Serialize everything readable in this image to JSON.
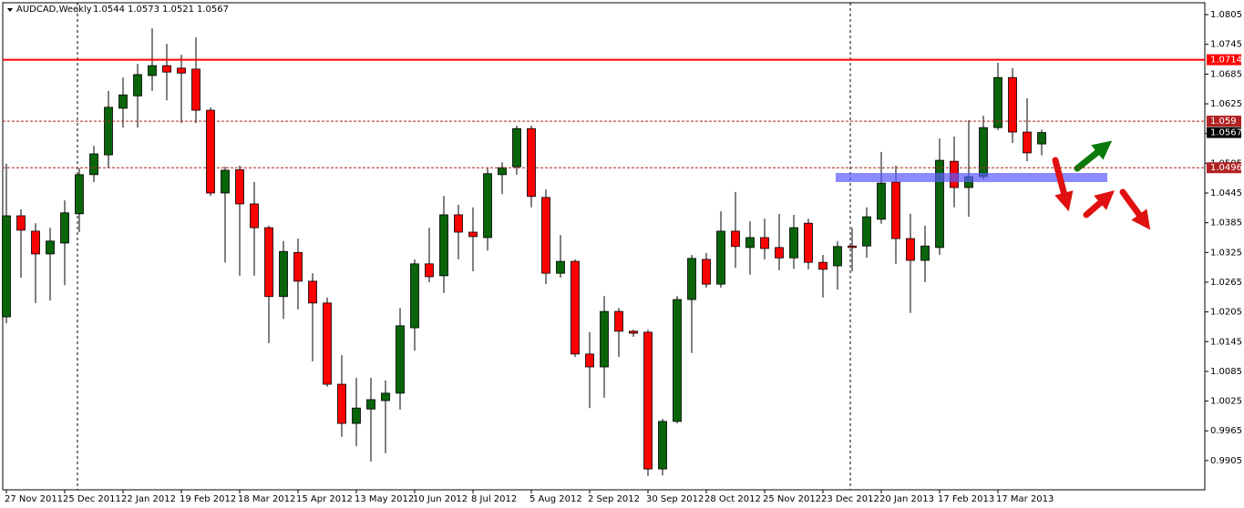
{
  "chart_data": {
    "type": "candlestick",
    "title": "AUDCAD,Weekly",
    "categories": [
      "27 Nov 2011",
      null,
      null,
      null,
      "25 Dec 2011",
      null,
      null,
      null,
      "22 Jan 2012",
      null,
      null,
      null,
      "19 Feb 2012",
      null,
      null,
      null,
      "18 Mar 2012",
      null,
      null,
      null,
      "15 Apr 2012",
      null,
      null,
      null,
      "13 May 2012",
      null,
      null,
      null,
      "10 Jun 2012",
      null,
      null,
      null,
      "8 Jul 2012",
      null,
      null,
      null,
      "5 Aug 2012",
      null,
      null,
      null,
      "2 Sep 2012",
      null,
      null,
      null,
      "30 Sep 2012",
      null,
      null,
      null,
      "28 Oct 2012",
      null,
      null,
      null,
      "25 Nov 2012",
      null,
      null,
      null,
      "23 Dec 2012",
      null,
      null,
      null,
      "20 Jan 2013",
      null,
      null,
      null,
      "17 Feb 2013",
      null,
      null,
      null,
      "17 Mar 2013",
      null,
      null,
      null
    ],
    "open": [
      1.0195,
      1.0399,
      1.0368,
      1.0322,
      1.0344,
      1.0403,
      1.0482,
      1.0522,
      1.0616,
      1.0641,
      1.0682,
      1.0702,
      1.0697,
      1.0695,
      1.0612,
      1.0445,
      1.0492,
      1.0423,
      1.0375,
      1.0236,
      1.0325,
      1.0267,
      1.0223,
      1.0059,
      0.998,
      1.0009,
      1.0026,
      1.0041,
      1.0173,
      1.0302,
      1.0278,
      1.0401,
      1.0366,
      1.0355,
      1.0482,
      1.0498,
      1.0575,
      1.0436,
      1.0283,
      1.0307,
      1.012,
      1.0094,
      1.0206,
      1.0166,
      1.0164,
      0.9888,
      0.9984,
      1.023,
      1.0311,
      1.0261,
      1.0368,
      1.0335,
      1.0355,
      1.0335,
      1.0314,
      1.0384,
      1.0305,
      1.0298,
      1.0338,
      1.0338,
      1.0392,
      1.0467,
      1.0353,
      1.0309,
      1.0335,
      1.0509,
      1.0456,
      1.0478,
      1.0577,
      1.0678,
      1.0568,
      1.0544
    ],
    "high": [
      1.0504,
      1.0412,
      1.0384,
      1.0375,
      1.043,
      1.0495,
      1.054,
      1.0651,
      1.0678,
      1.0706,
      1.0777,
      1.0746,
      1.0724,
      1.0759,
      1.0618,
      1.0498,
      1.05,
      1.0467,
      1.0379,
      1.0348,
      1.0353,
      1.0283,
      1.0234,
      1.0118,
      1.0072,
      1.0072,
      1.0067,
      1.0213,
      1.0311,
      1.0375,
      1.0439,
      1.0421,
      1.0416,
      1.0495,
      1.0507,
      1.0581,
      1.0581,
      1.0452,
      1.036,
      1.0311,
      1.0164,
      1.0237,
      1.0213,
      1.0169,
      1.0169,
      0.9989,
      1.0237,
      1.032,
      1.0324,
      1.0408,
      1.0447,
      1.0388,
      1.0393,
      1.0403,
      1.0401,
      1.0393,
      1.032,
      1.0348,
      1.0375,
      1.0416,
      1.0528,
      1.05,
      1.0403,
      1.0379,
      1.0555,
      1.0559,
      1.0592,
      1.0601,
      1.0708,
      1.0697,
      1.0636,
      1.0573
    ],
    "low": [
      1.0182,
      1.0274,
      1.0223,
      1.0228,
      1.0259,
      1.0366,
      1.0467,
      1.0495,
      1.0577,
      1.0577,
      1.0651,
      1.0632,
      1.0586,
      1.0586,
      1.0439,
      1.0305,
      1.0278,
      1.0278,
      1.0142,
      1.0191,
      1.021,
      1.0105,
      1.0054,
      0.9953,
      0.9934,
      0.9903,
      0.992,
      1.0008,
      1.0127,
      1.0265,
      1.0243,
      1.0311,
      1.0287,
      1.0329,
      1.0443,
      1.0482,
      1.0416,
      1.0261,
      1.0274,
      1.0114,
      1.0011,
      1.0032,
      1.0114,
      1.0155,
      0.9874,
      0.9875,
      0.998,
      1.0122,
      1.0254,
      1.0254,
      1.0294,
      1.028,
      1.0311,
      1.0289,
      1.0292,
      1.0291,
      1.0234,
      1.025,
      1.0287,
      1.0314,
      1.0383,
      1.0302,
      1.0203,
      1.0265,
      1.032,
      1.0416,
      1.0397,
      1.0472,
      1.0572,
      1.0546,
      1.0509,
      1.0521
    ],
    "close": [
      1.0399,
      1.037,
      1.0322,
      1.0348,
      1.0405,
      1.0482,
      1.0524,
      1.0618,
      1.0643,
      1.0684,
      1.0702,
      1.0689,
      1.0687,
      1.0612,
      1.0445,
      1.0491,
      1.0423,
      1.0375,
      1.0236,
      1.0327,
      1.0267,
      1.0223,
      1.0059,
      0.998,
      1.0011,
      1.0028,
      1.0041,
      1.0177,
      1.0302,
      1.0276,
      1.0401,
      1.0366,
      1.0357,
      1.0484,
      1.0496,
      1.0575,
      1.0438,
      1.0283,
      1.0307,
      1.012,
      1.0094,
      1.0206,
      1.0166,
      1.0162,
      0.9888,
      0.9984,
      1.023,
      1.0313,
      1.0261,
      1.0368,
      1.0337,
      1.0355,
      1.0333,
      1.0314,
      1.0375,
      1.0305,
      1.0291,
      1.0337,
      1.0335,
      1.0397,
      1.0465,
      1.0353,
      1.0309,
      1.0338,
      1.0511,
      1.0456,
      1.0478,
      1.0577,
      1.0678,
      1.0568,
      1.0526,
      1.0567
    ],
    "up_color": "#0a640a",
    "down_color": "#ff0000",
    "ylim": [
      0.9846,
      1.0829
    ],
    "yticks": [
      1.0805,
      1.0745,
      1.0685,
      1.0625,
      1.0565,
      1.0505,
      1.0445,
      1.0385,
      1.0325,
      1.0265,
      1.0205,
      1.0145,
      1.0085,
      1.0025,
      0.9965,
      0.9905
    ],
    "levels": [
      {
        "value": 1.0714,
        "color": "#ff0000",
        "style": "solid"
      },
      {
        "value": 1.059,
        "color": "#b22222",
        "style": "dashed"
      },
      {
        "value": 1.0496,
        "color": "#b22222",
        "style": "dashed"
      }
    ]
  }
}
